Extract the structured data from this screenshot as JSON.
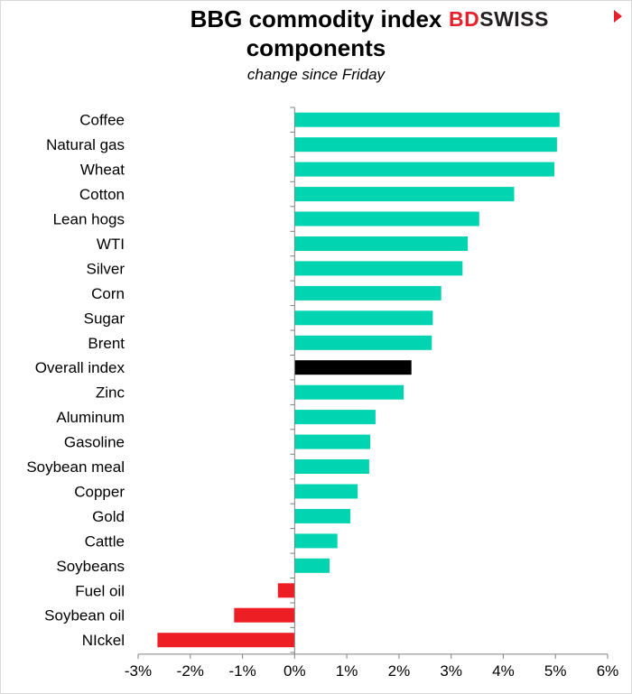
{
  "chart_data": {
    "type": "bar",
    "orientation": "horizontal",
    "title_line1": "BBG commodity index",
    "title_line2": "components",
    "subtitle": "change since Friday",
    "categories": [
      "Coffee",
      "Natural gas",
      "Wheat",
      "Cotton",
      "Lean hogs",
      "WTI",
      "Silver",
      "Corn",
      "Sugar",
      "Brent",
      "Overall index",
      "Zinc",
      "Aluminum",
      "Gasoline",
      "Soybean meal",
      "Copper",
      "Gold",
      "Cattle",
      "Soybeans",
      "Fuel oil",
      "Soybean oil",
      "NIckel"
    ],
    "values": [
      5.08,
      5.03,
      4.98,
      4.21,
      3.54,
      3.32,
      3.22,
      2.81,
      2.65,
      2.63,
      2.24,
      2.09,
      1.55,
      1.45,
      1.43,
      1.21,
      1.07,
      0.82,
      0.67,
      -0.32,
      -1.16,
      -2.63
    ],
    "highlight": "Overall index",
    "xlim": [
      -3,
      6
    ],
    "xticks": [
      "-3%",
      "-2%",
      "-1%",
      "0%",
      "1%",
      "2%",
      "3%",
      "4%",
      "5%",
      "6%"
    ],
    "colors": {
      "positive": "#00d4b0",
      "negative": "#ee1f24",
      "highlight": "#000000"
    },
    "legend": "none",
    "grid": false
  },
  "logo": {
    "part1": "BD",
    "part2": "SWISS"
  }
}
